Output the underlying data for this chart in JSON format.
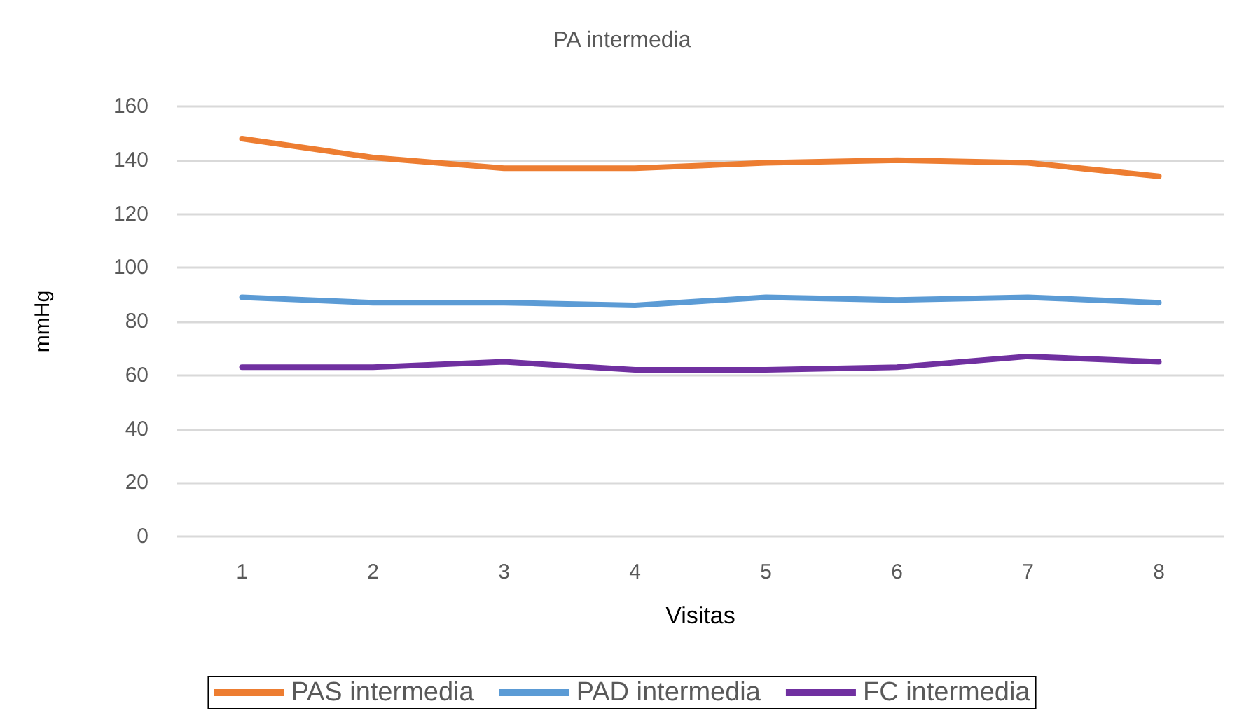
{
  "chart_data": {
    "type": "line",
    "title": "PA intermedia",
    "xlabel": "Visitas",
    "ylabel": "mmHg",
    "categories": [
      "1",
      "2",
      "3",
      "4",
      "5",
      "6",
      "7",
      "8"
    ],
    "series": [
      {
        "name": "PAS intermedia",
        "color": "#ed7d31",
        "values": [
          148,
          141,
          137,
          137,
          139,
          140,
          139,
          134
        ]
      },
      {
        "name": "PAD intermedia",
        "color": "#5b9bd5",
        "values": [
          89,
          87,
          87,
          86,
          89,
          88,
          89,
          87
        ]
      },
      {
        "name": "FC intermedia",
        "color": "#7030a0",
        "values": [
          63,
          63,
          65,
          62,
          62,
          63,
          67,
          65
        ]
      }
    ],
    "ylim": [
      0,
      160
    ],
    "yticks": [
      0,
      20,
      40,
      60,
      80,
      100,
      120,
      140,
      160
    ],
    "grid": "y",
    "legend": "bottom",
    "marker": "none",
    "line_style": "solid"
  }
}
